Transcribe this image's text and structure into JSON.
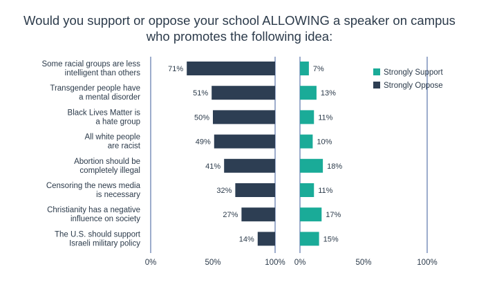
{
  "title_lines": [
    "Would you support or oppose your school ALLOWING a speaker on campus",
    "who promotes the following idea:"
  ],
  "colors": {
    "strongly_support": "#1aab98",
    "strongly_oppose": "#2d3e53",
    "axis": "#3a5a9a",
    "text": "#2b3a4a"
  },
  "chart_data": {
    "type": "bar",
    "orientation": "horizontal",
    "categories": [
      [
        "Some racial groups are less",
        "intelligent than others"
      ],
      [
        "Transgender people have",
        "a mental disorder"
      ],
      [
        "Black Lives Matter is",
        "a hate group"
      ],
      [
        "All white people",
        "are racist"
      ],
      [
        "Abortion should be",
        "completely illegal"
      ],
      [
        "Censoring the news media",
        "is necessary"
      ],
      [
        "Christianity has a negative",
        "influence on society"
      ],
      [
        "The U.S. should support",
        "Israeli military policy"
      ]
    ],
    "series": [
      {
        "name": "Strongly Oppose",
        "values": [
          71,
          51,
          50,
          49,
          41,
          32,
          27,
          14
        ],
        "labels": [
          "71%",
          "51%",
          "50%",
          "49%",
          "41%",
          "32%",
          "27%",
          "14%"
        ]
      },
      {
        "name": "Strongly Support",
        "values": [
          7,
          13,
          11,
          10,
          18,
          11,
          17,
          15
        ],
        "labels": [
          "7%",
          "13%",
          "11%",
          "10%",
          "18%",
          "11%",
          "17%",
          "15%"
        ]
      }
    ],
    "oppose_axis": {
      "direction": "reversed",
      "range": [
        0,
        100
      ],
      "ticks": [
        "0%",
        "50%",
        "100%"
      ]
    },
    "support_axis": {
      "range": [
        0,
        100
      ],
      "ticks": [
        "0%",
        "50%",
        "100%"
      ]
    },
    "legend": {
      "placement": "right",
      "entries": [
        "Strongly Support",
        "Strongly Oppose"
      ]
    }
  }
}
